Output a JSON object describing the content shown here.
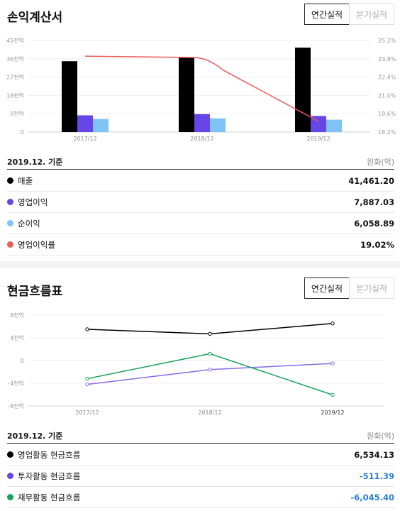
{
  "income": {
    "title": "손익계산서",
    "tabs": [
      {
        "label": "연간실적",
        "active": true
      },
      {
        "label": "분기실적",
        "active": false
      }
    ],
    "basis": "2019.12. 기준",
    "unit": "원화(억)",
    "rows": [
      {
        "label": "매출",
        "value": "41,461.20",
        "color": "#000000"
      },
      {
        "label": "영업이익",
        "value": "7,887.03",
        "color": "#6646e6"
      },
      {
        "label": "순이익",
        "value": "6,058.89",
        "color": "#7fc3f5"
      },
      {
        "label": "영업이익률",
        "value": "19.02%",
        "color": "#ef5a5a"
      }
    ],
    "chart_data": {
      "type": "bar",
      "categories": [
        "2017/12",
        "2018/12",
        "2019/12"
      ],
      "series": [
        {
          "name": "매출",
          "values": [
            34800,
            36700,
            41461.2
          ],
          "color": "#000000"
        },
        {
          "name": "영업이익",
          "values": [
            8200,
            8800,
            7887.03
          ],
          "color": "#6646e6"
        },
        {
          "name": "순이익",
          "values": [
            6400,
            6700,
            6058.89
          ],
          "color": "#7fc3f5"
        }
      ],
      "line_series": {
        "name": "영업이익률",
        "values": [
          24.0,
          23.9,
          19.02
        ],
        "color": "#ef5a5a",
        "axis": "right"
      },
      "y_left": {
        "ticks": [
          "0",
          "9천억",
          "18천억",
          "27천억",
          "36천억",
          "45천억"
        ],
        "values": [
          0,
          9000,
          18000,
          27000,
          36000,
          45000
        ],
        "range": [
          0,
          45000
        ]
      },
      "y_right": {
        "ticks": [
          "18.2%",
          "19.6%",
          "21.0%",
          "22.4%",
          "23.8%",
          "25.2%"
        ],
        "values": [
          18.2,
          19.6,
          21.0,
          22.4,
          23.8,
          25.2
        ],
        "range": [
          18.2,
          25.2
        ]
      }
    }
  },
  "cashflow": {
    "title": "현금흐름표",
    "tabs": [
      {
        "label": "연간실적",
        "active": true
      },
      {
        "label": "분기실적",
        "active": false
      }
    ],
    "basis": "2019.12. 기준",
    "unit": "원화(억)",
    "rows": [
      {
        "label": "영업활동 현금흐름",
        "value": "6,534.13",
        "color": "#000000",
        "negative": false
      },
      {
        "label": "투자활동 현금흐름",
        "value": "-511.39",
        "color": "#6646e6",
        "negative": true
      },
      {
        "label": "재무활동 현금흐름",
        "value": "-6,045.40",
        "color": "#1aa061",
        "negative": true
      }
    ],
    "chart_data": {
      "type": "line",
      "categories": [
        "2017/12",
        "2018/12",
        "2019/12"
      ],
      "series": [
        {
          "name": "영업활동 현금흐름",
          "values": [
            5500,
            4700,
            6534.13
          ],
          "color": "#000000"
        },
        {
          "name": "투자활동 현금흐름",
          "values": [
            -4200,
            -1600,
            -511.39
          ],
          "color": "#8a6ae6"
        },
        {
          "name": "재무활동 현금흐름",
          "values": [
            -3200,
            1200,
            -6045.4
          ],
          "color": "#1aa061"
        }
      ],
      "y": {
        "ticks": [
          "8천억",
          "4천억",
          "0",
          "-4천억",
          "-8천억"
        ],
        "values": [
          8000,
          4000,
          0,
          -4000,
          -8000
        ],
        "range": [
          -8000,
          8000
        ]
      }
    }
  }
}
